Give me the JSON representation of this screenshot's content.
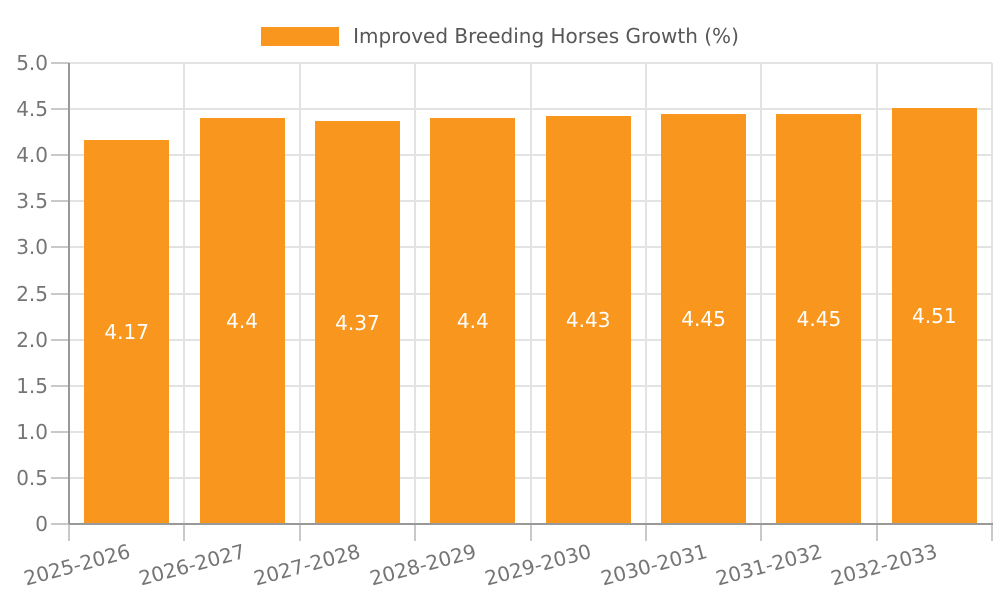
{
  "chart_data": {
    "type": "bar",
    "title": "",
    "legend": "Improved Breeding Horses Growth (%)",
    "legend_position": "top-center",
    "categories": [
      "2025-2026",
      "2026-2027",
      "2027-2028",
      "2028-2029",
      "2029-2030",
      "2030-2031",
      "2031-2032",
      "2032-2033"
    ],
    "values": [
      4.17,
      4.4,
      4.37,
      4.4,
      4.43,
      4.45,
      4.45,
      4.51
    ],
    "value_labels": [
      "4.17",
      "4.4",
      "4.37",
      "4.4",
      "4.43",
      "4.45",
      "4.45",
      "4.51"
    ],
    "xlabel": "",
    "ylabel": "",
    "ylim": [
      0,
      5
    ],
    "ytick_step": 0.5,
    "ytick_labels": [
      "0",
      "0.5",
      "1.0",
      "1.5",
      "2.0",
      "2.5",
      "3.0",
      "3.5",
      "4.0",
      "4.5",
      "5.0"
    ],
    "grid": true,
    "colors": {
      "bar": "#F8961E",
      "value_label": "#FFFFFF",
      "axis_line": "#999999",
      "tick_line": "#C9C9C9",
      "gridline": "#E3E3E3",
      "axis_label": "#757575",
      "legend_text": "#575757",
      "background": "#FFFFFF"
    }
  }
}
